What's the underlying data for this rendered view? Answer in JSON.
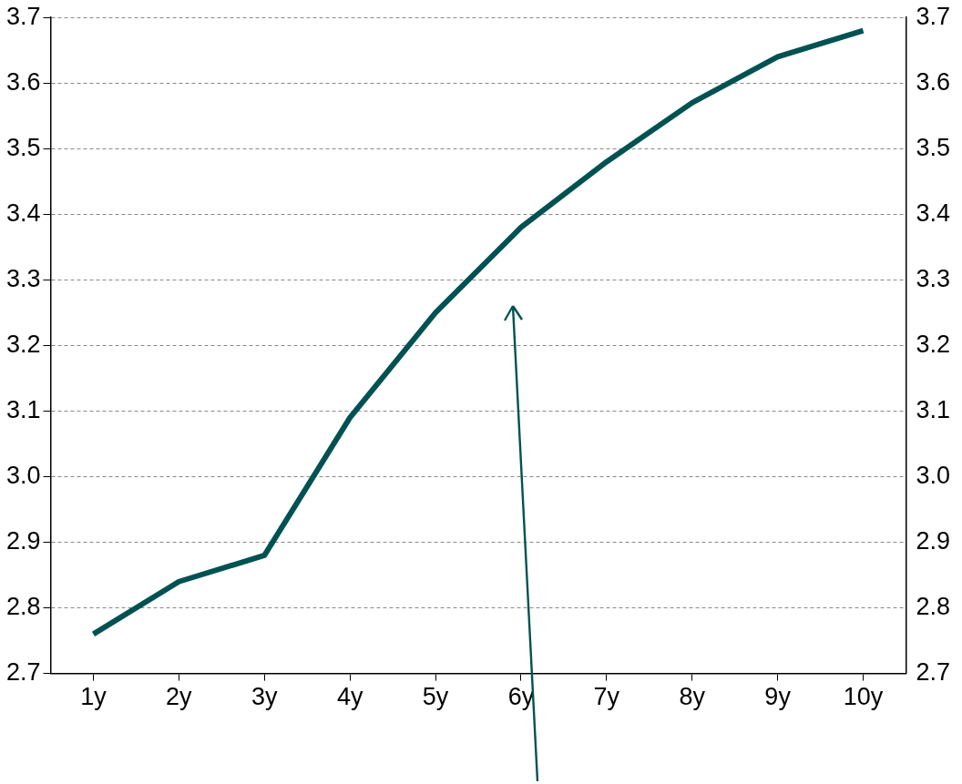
{
  "chart_data": {
    "type": "line",
    "categories": [
      "1y",
      "2y",
      "3y",
      "4y",
      "5y",
      "6y",
      "7y",
      "8y",
      "9y",
      "10y"
    ],
    "series": [
      {
        "color": "#005252",
        "values": [
          2.76,
          2.84,
          2.88,
          3.09,
          3.25,
          3.38,
          3.48,
          3.57,
          3.64,
          3.68
        ]
      }
    ],
    "ylim": [
      2.7,
      3.7
    ],
    "yticks": [
      2.7,
      2.8,
      2.9,
      {
        "value": 3,
        "label": "3.0"
      },
      3.1,
      3.2,
      3.3,
      3.4,
      3.5,
      3.6,
      3.7
    ],
    "y2lim": [
      2.7,
      3.7
    ],
    "y2ticks": [
      2.7,
      2.8,
      2.9,
      {
        "value": 3,
        "label": "3.0"
      },
      3.1,
      3.2,
      3.3,
      3.4,
      3.5,
      3.6,
      3.7
    ],
    "grid": "y",
    "legend": false,
    "marker": "none",
    "line_style": "solid"
  }
}
